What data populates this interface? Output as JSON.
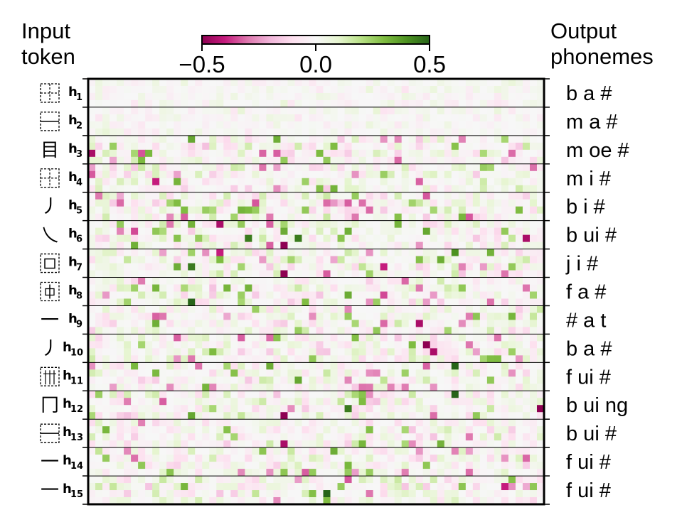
{
  "header": {
    "left_line1": "Input",
    "left_line2": "token",
    "right_line1": "Output",
    "right_line2": "phonemes"
  },
  "colorbar": {
    "ticks": [
      "−0.5",
      "0.0",
      "0.5"
    ],
    "range": [
      -0.5,
      0.5
    ],
    "colors": [
      "#8e0152",
      "#c51b7d",
      "#de77ae",
      "#f1b6da",
      "#fde0ef",
      "#f7f7f7",
      "#e6f5d0",
      "#b8e186",
      "#7fbc41",
      "#4d9221",
      "#276419"
    ]
  },
  "chart_data": {
    "type": "heatmap",
    "rows": [
      {
        "token_glyph": "",
        "token_shape": "box-dashed",
        "label": "h",
        "sub": "1",
        "phonemes": "b a #"
      },
      {
        "token_glyph": "",
        "token_shape": "box-bar",
        "label": "h",
        "sub": "2",
        "phonemes": "m a #"
      },
      {
        "token_glyph": "目",
        "token_shape": "",
        "label": "h",
        "sub": "3",
        "phonemes": "m oe #"
      },
      {
        "token_glyph": "",
        "token_shape": "box-dashed",
        "label": "h",
        "sub": "4",
        "phonemes": "m i #"
      },
      {
        "token_glyph": "丿",
        "token_shape": "",
        "label": "h",
        "sub": "5",
        "phonemes": "b i #"
      },
      {
        "token_glyph": "乀",
        "token_shape": "",
        "label": "h",
        "sub": "6",
        "phonemes": "b ui #"
      },
      {
        "token_glyph": "",
        "token_shape": "box-inner",
        "label": "h",
        "sub": "7",
        "phonemes": "j i #"
      },
      {
        "token_glyph": "",
        "token_shape": "box-cross",
        "label": "h",
        "sub": "8",
        "phonemes": "f a #"
      },
      {
        "token_glyph": "一",
        "token_shape": "",
        "label": "h",
        "sub": "9",
        "phonemes": "# a t"
      },
      {
        "token_glyph": "丿",
        "token_shape": "",
        "label": "h",
        "sub": "10",
        "phonemes": "b a #"
      },
      {
        "token_glyph": "",
        "token_shape": "box-grid",
        "label": "h",
        "sub": "11",
        "phonemes": "f ui #"
      },
      {
        "token_glyph": "冂",
        "token_shape": "",
        "label": "h",
        "sub": "12",
        "phonemes": "b ui ng"
      },
      {
        "token_glyph": "",
        "token_shape": "box-bar",
        "label": "h",
        "sub": "13",
        "phonemes": "b ui #"
      },
      {
        "token_glyph": "一",
        "token_shape": "",
        "label": "h",
        "sub": "14",
        "phonemes": "f ui #"
      },
      {
        "token_glyph": "一",
        "token_shape": "",
        "label": "h",
        "sub": "15",
        "phonemes": "f ui #"
      }
    ],
    "cells_per_row": [
      4,
      64
    ],
    "strong_cells": [
      {
        "row": 3,
        "sub": 2,
        "col": 0,
        "v": -0.45
      },
      {
        "row": 3,
        "sub": 0,
        "col": 14,
        "v": 0.35
      },
      {
        "row": 3,
        "sub": 1,
        "col": 34,
        "v": 0.3
      },
      {
        "row": 4,
        "sub": 2,
        "col": 9,
        "v": -0.4
      },
      {
        "row": 5,
        "sub": 2,
        "col": 13,
        "v": 0.3
      },
      {
        "row": 5,
        "sub": 2,
        "col": 60,
        "v": 0.3
      },
      {
        "row": 6,
        "sub": 0,
        "col": 18,
        "v": -0.45
      },
      {
        "row": 6,
        "sub": 1,
        "col": 6,
        "v": -0.35
      },
      {
        "row": 6,
        "sub": 2,
        "col": 22,
        "v": 0.45
      },
      {
        "row": 6,
        "sub": 3,
        "col": 27,
        "v": -0.5
      },
      {
        "row": 6,
        "sub": 2,
        "col": 29,
        "v": 0.45
      },
      {
        "row": 6,
        "sub": 1,
        "col": 47,
        "v": 0.35
      },
      {
        "row": 6,
        "sub": 2,
        "col": 61,
        "v": -0.45
      },
      {
        "row": 7,
        "sub": 0,
        "col": 18,
        "v": -0.4
      },
      {
        "row": 7,
        "sub": 0,
        "col": 51,
        "v": 0.4
      },
      {
        "row": 7,
        "sub": 2,
        "col": 14,
        "v": 0.45
      },
      {
        "row": 7,
        "sub": 3,
        "col": 27,
        "v": -0.5
      },
      {
        "row": 7,
        "sub": 2,
        "col": 41,
        "v": -0.4
      },
      {
        "row": 8,
        "sub": 3,
        "col": 14,
        "v": 0.5
      },
      {
        "row": 8,
        "sub": 2,
        "col": 41,
        "v": -0.35
      },
      {
        "row": 9,
        "sub": 1,
        "col": 10,
        "v": -0.3
      },
      {
        "row": 9,
        "sub": 2,
        "col": 46,
        "v": -0.45
      },
      {
        "row": 10,
        "sub": 1,
        "col": 47,
        "v": -0.5
      },
      {
        "row": 10,
        "sub": 2,
        "col": 48,
        "v": -0.45
      },
      {
        "row": 11,
        "sub": 0,
        "col": 51,
        "v": 0.5
      },
      {
        "row": 11,
        "sub": 2,
        "col": 29,
        "v": 0.35
      },
      {
        "row": 12,
        "sub": 0,
        "col": 51,
        "v": 0.5
      },
      {
        "row": 12,
        "sub": 2,
        "col": 36,
        "v": 0.45
      },
      {
        "row": 12,
        "sub": 2,
        "col": 63,
        "v": -0.5
      },
      {
        "row": 12,
        "sub": 3,
        "col": 27,
        "v": -0.5
      },
      {
        "row": 12,
        "sub": 3,
        "col": 14,
        "v": 0.35
      },
      {
        "row": 13,
        "sub": 3,
        "col": 27,
        "v": -0.45
      },
      {
        "row": 15,
        "sub": 2,
        "col": 33,
        "v": 0.5
      },
      {
        "row": 15,
        "sub": 1,
        "col": 58,
        "v": -0.4
      }
    ]
  }
}
